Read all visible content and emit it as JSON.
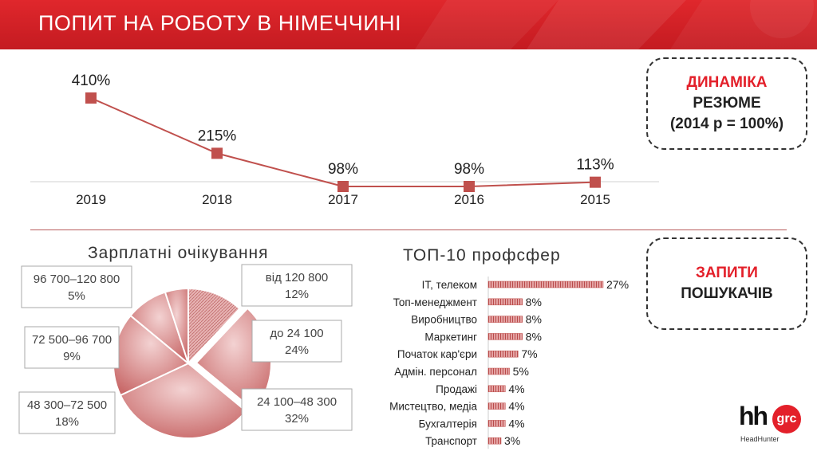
{
  "title": "ПОПИТ НА РОБОТУ В НІМЕЧЧИНІ",
  "box_dynamics": {
    "line1": "ДИНАМІКА",
    "line2": "РЕЗЮМЕ",
    "line3": "(2014 р = 100%)"
  },
  "box_requests": {
    "line1": "ЗАПИТИ",
    "line2": "ПОШУКАЧІВ"
  },
  "pie_title": "Зарплатні очікування",
  "bar_title": "ТОП-10 профсфер",
  "logo": {
    "mark": "hh",
    "badge": "grc",
    "sub": "HeadHunter"
  },
  "colors": {
    "brand_red": "#e3202a",
    "series": "#c0504d"
  },
  "chart_data": [
    {
      "type": "line",
      "x": [
        "2019",
        "2018",
        "2017",
        "2016",
        "2015"
      ],
      "values": [
        410,
        215,
        98,
        98,
        113
      ],
      "data_labels": [
        "410%",
        "215%",
        "98%",
        "98%",
        "113%"
      ],
      "grid": false
    },
    {
      "type": "pie",
      "title": "Зарплатні очікування",
      "slices": [
        {
          "label": "від 120 800",
          "value": 12,
          "pct": "12%"
        },
        {
          "label": "до 24 100",
          "value": 24,
          "pct": "24%"
        },
        {
          "label": "24 100–48 300",
          "value": 32,
          "pct": "32%"
        },
        {
          "label": "48 300–72 500",
          "value": 18,
          "pct": "18%"
        },
        {
          "label": "72 500–96 700",
          "value": 9,
          "pct": "9%"
        },
        {
          "label": "96 700–120 800",
          "value": 5,
          "pct": "5%"
        }
      ]
    },
    {
      "type": "bar",
      "orientation": "horizontal",
      "title": "ТОП-10 профсфер",
      "categories": [
        "IT, телеком",
        "Топ-менеджмент",
        "Виробництво",
        "Маркетинг",
        "Початок кар'єри",
        "Адмін. персонал",
        "Продажі",
        "Мистецтво, медіа",
        "Бухгалтерія",
        "Транспорт"
      ],
      "values": [
        27,
        8,
        8,
        8,
        7,
        5,
        4,
        4,
        4,
        3
      ],
      "data_labels": [
        "27%",
        "8%",
        "8%",
        "8%",
        "7%",
        "5%",
        "4%",
        "4%",
        "4%",
        "3%"
      ]
    }
  ]
}
